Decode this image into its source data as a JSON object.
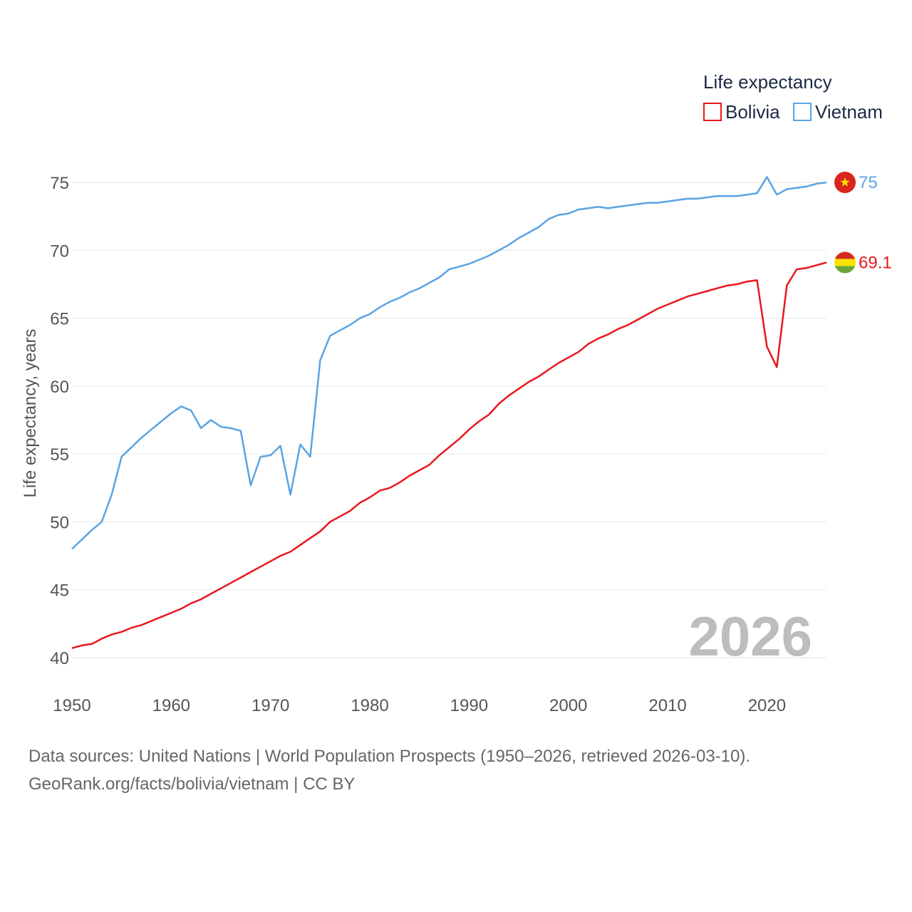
{
  "chart_data": {
    "type": "line",
    "title": "",
    "legend_title": "Life expectancy",
    "ylabel": "Life expectancy, years",
    "xlabel": "",
    "xlim": [
      1950,
      2026
    ],
    "ylim": [
      40,
      76
    ],
    "x_ticks": [
      "1950",
      "1960",
      "1970",
      "1980",
      "1990",
      "2000",
      "2010",
      "2020"
    ],
    "y_ticks": [
      "40",
      "45",
      "50",
      "55",
      "60",
      "65",
      "70",
      "75"
    ],
    "grid": true,
    "legend_position": "top-right",
    "year_label": "2026",
    "x": [
      1950,
      1951,
      1952,
      1953,
      1954,
      1955,
      1956,
      1957,
      1958,
      1959,
      1960,
      1961,
      1962,
      1963,
      1964,
      1965,
      1966,
      1967,
      1968,
      1969,
      1970,
      1971,
      1972,
      1973,
      1974,
      1975,
      1976,
      1977,
      1978,
      1979,
      1980,
      1981,
      1982,
      1983,
      1984,
      1985,
      1986,
      1987,
      1988,
      1989,
      1990,
      1991,
      1992,
      1993,
      1994,
      1995,
      1996,
      1997,
      1998,
      1999,
      2000,
      2001,
      2002,
      2003,
      2004,
      2005,
      2006,
      2007,
      2008,
      2009,
      2010,
      2011,
      2012,
      2013,
      2014,
      2015,
      2016,
      2017,
      2018,
      2019,
      2020,
      2021,
      2022,
      2023,
      2024,
      2025,
      2026
    ],
    "series": [
      {
        "name": "Bolivia",
        "color": "#e8171d",
        "flag": "bolivia-flag",
        "end_label": "69.1",
        "values": [
          40.7,
          40.9,
          41.0,
          41.4,
          41.7,
          41.9,
          42.2,
          42.4,
          42.7,
          43.0,
          43.3,
          43.6,
          44.0,
          44.3,
          44.7,
          45.1,
          45.5,
          45.9,
          46.3,
          46.7,
          47.1,
          47.5,
          47.8,
          48.3,
          48.8,
          49.3,
          50.0,
          50.4,
          50.8,
          51.4,
          51.8,
          52.3,
          52.5,
          52.9,
          53.4,
          53.8,
          54.2,
          54.9,
          55.5,
          56.1,
          56.8,
          57.4,
          57.9,
          58.7,
          59.3,
          59.8,
          60.3,
          60.7,
          61.2,
          61.7,
          62.1,
          62.5,
          63.1,
          63.5,
          63.8,
          64.2,
          64.5,
          64.9,
          65.3,
          65.7,
          66.0,
          66.3,
          66.6,
          66.8,
          67.0,
          67.2,
          67.4,
          67.5,
          67.7,
          67.8,
          62.9,
          61.4,
          67.4,
          68.6,
          68.7,
          68.9,
          69.1
        ]
      },
      {
        "name": "Vietnam",
        "color": "#5aa4e3",
        "flag": "vietnam-flag",
        "end_label": "75",
        "values": [
          48.0,
          48.7,
          49.4,
          50.0,
          52.0,
          54.8,
          55.5,
          56.2,
          56.8,
          57.4,
          58.0,
          58.5,
          58.2,
          56.9,
          57.5,
          57.0,
          56.9,
          56.7,
          52.7,
          54.8,
          54.9,
          55.6,
          52.0,
          55.7,
          54.8,
          61.9,
          63.7,
          64.1,
          64.5,
          65.0,
          65.3,
          65.8,
          66.2,
          66.5,
          66.9,
          67.2,
          67.6,
          68.0,
          68.6,
          68.8,
          69.0,
          69.3,
          69.6,
          70.0,
          70.4,
          70.9,
          71.3,
          71.7,
          72.3,
          72.6,
          72.7,
          73.0,
          73.1,
          73.2,
          73.1,
          73.2,
          73.3,
          73.4,
          73.5,
          73.5,
          73.6,
          73.7,
          73.8,
          73.8,
          73.9,
          74.0,
          74.0,
          74.0,
          74.1,
          74.2,
          75.4,
          74.1,
          74.5,
          74.6,
          74.7,
          74.9,
          75.0
        ]
      }
    ]
  },
  "source": {
    "line1": "Data sources: United Nations | World Population Prospects (1950–2026, retrieved 2026-03-10).",
    "line2": "GeoRank.org/facts/bolivia/vietnam | CC BY"
  }
}
